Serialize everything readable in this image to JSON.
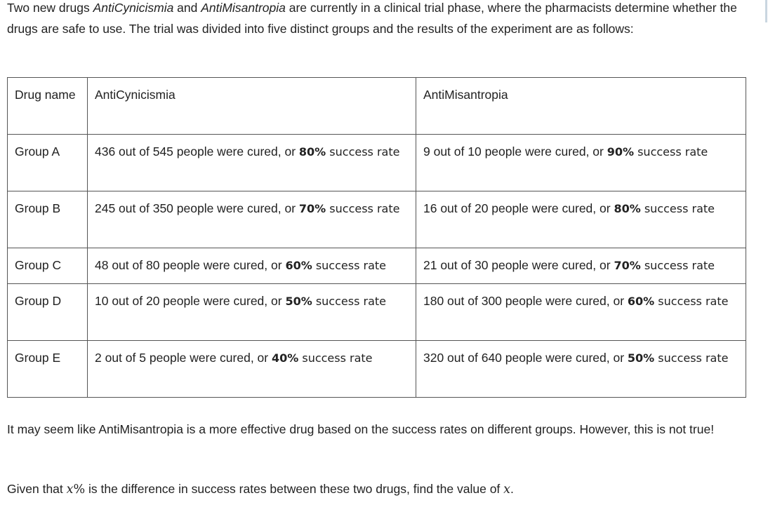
{
  "intro": {
    "part1": "Two new drugs ",
    "drug1": "AntiCynicismia",
    "part2": " and ",
    "drug2": "AntiMisantropia",
    "part3": " are currently in a clinical trial phase, where the pharmacists determine whether the drugs are safe to use. The trial was divided into five distinct groups and the results of the experiment are as follows:"
  },
  "table": {
    "header": {
      "col0": "Drug name",
      "col1": "AntiCynicismia",
      "col2": "AntiMisantropia"
    },
    "rows": [
      {
        "group": "Group A",
        "c1_text": "436 out of 545 people were cured, or ",
        "c1_pct": "80%",
        "c1_tail": " success rate",
        "c2_text": "9 out of 10 people were cured, or ",
        "c2_pct": "90%",
        "c2_tail": " success rate"
      },
      {
        "group": "Group B",
        "c1_text": "245 out of 350 people were cured, or ",
        "c1_pct": "70%",
        "c1_tail": " success rate",
        "c2_text": "16 out of 20 people were cured, or ",
        "c2_pct": "80%",
        "c2_tail": " success rate"
      },
      {
        "group": "Group C",
        "c1_text": "48 out of 80 people were cured, or ",
        "c1_pct": "60%",
        "c1_tail": " success rate",
        "c2_text": "21 out of 30 people were cured, or ",
        "c2_pct": "70%",
        "c2_tail": " success rate"
      },
      {
        "group": "Group D",
        "c1_text": "10 out of 20 people were cured, or ",
        "c1_pct": "50%",
        "c1_tail": " success rate",
        "c2_text": "180 out of 300 people were cured, or ",
        "c2_pct": "60%",
        "c2_tail": " success rate"
      },
      {
        "group": "Group E",
        "c1_text": "2 out of 5 people were cured, or ",
        "c1_pct": "40%",
        "c1_tail": " success rate",
        "c2_text": "320 out of 640 people were cured, or ",
        "c2_pct": "50%",
        "c2_tail": " success rate"
      }
    ]
  },
  "para2": "It may seem like AntiMisantropia is a more effective drug based on the success rates on different groups. However, this is not true!",
  "para3": {
    "before": "Given that ",
    "var": "x",
    "pct": "%",
    "middle": " is the difference in success rates between these two drugs, find the value of ",
    "end": "."
  }
}
